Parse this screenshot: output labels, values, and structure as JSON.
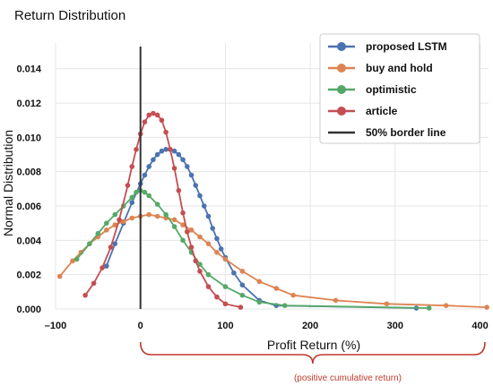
{
  "chart_data": {
    "type": "line",
    "title": "Return Distribution",
    "xlabel": "Profit Return (%)",
    "ylabel": "Normal Distribution",
    "xlim": [
      -100,
      410
    ],
    "ylim": [
      0,
      0.0155
    ],
    "xticks": [
      -100,
      0,
      100,
      200,
      300,
      400
    ],
    "xtick_labels": [
      "–100",
      "0",
      "100",
      "200",
      "300",
      "400"
    ],
    "yticks": [
      0,
      0.002,
      0.004,
      0.006,
      0.008,
      0.01,
      0.012,
      0.014
    ],
    "ytick_labels": [
      "0.000",
      "0.002",
      "0.004",
      "0.006",
      "0.008",
      "0.010",
      "0.012",
      "0.014"
    ],
    "grid": true,
    "legend_position": "top-right",
    "border_line_x": 0,
    "annotation": "(positive cumulative return)",
    "series": [
      {
        "name": "proposed LSTM",
        "color": "#4c72b0",
        "points": [
          [
            -40,
            0.0025
          ],
          [
            -30,
            0.0038
          ],
          [
            -20,
            0.005
          ],
          [
            -10,
            0.0062
          ],
          [
            0,
            0.0073
          ],
          [
            5,
            0.0078
          ],
          [
            10,
            0.0083
          ],
          [
            15,
            0.0087
          ],
          [
            20,
            0.009
          ],
          [
            25,
            0.0092
          ],
          [
            30,
            0.0093
          ],
          [
            35,
            0.0093
          ],
          [
            40,
            0.0092
          ],
          [
            45,
            0.009
          ],
          [
            50,
            0.0087
          ],
          [
            55,
            0.0083
          ],
          [
            60,
            0.0078
          ],
          [
            65,
            0.0072
          ],
          [
            70,
            0.0066
          ],
          [
            75,
            0.006
          ],
          [
            80,
            0.0054
          ],
          [
            85,
            0.0047
          ],
          [
            90,
            0.0041
          ],
          [
            95,
            0.0035
          ],
          [
            100,
            0.003
          ],
          [
            110,
            0.0021
          ],
          [
            120,
            0.0014
          ],
          [
            140,
            0.0005
          ],
          [
            160,
            0.0002
          ],
          [
            325,
            5e-05
          ]
        ]
      },
      {
        "name": "buy and hold",
        "color": "#dd8452",
        "points": [
          [
            -95,
            0.0019
          ],
          [
            -80,
            0.0028
          ],
          [
            -70,
            0.0033
          ],
          [
            -60,
            0.0038
          ],
          [
            -50,
            0.0042
          ],
          [
            -40,
            0.0046
          ],
          [
            -30,
            0.0049
          ],
          [
            -20,
            0.0051
          ],
          [
            -10,
            0.0053
          ],
          [
            0,
            0.0054
          ],
          [
            10,
            0.0055
          ],
          [
            20,
            0.0054
          ],
          [
            30,
            0.0053
          ],
          [
            40,
            0.0052
          ],
          [
            50,
            0.0049
          ],
          [
            60,
            0.0046
          ],
          [
            70,
            0.0042
          ],
          [
            80,
            0.0038
          ],
          [
            90,
            0.0033
          ],
          [
            100,
            0.0029
          ],
          [
            120,
            0.0022
          ],
          [
            140,
            0.0016
          ],
          [
            160,
            0.0012
          ],
          [
            180,
            0.0008
          ],
          [
            230,
            0.0005
          ],
          [
            290,
            0.0003
          ],
          [
            360,
            0.0002
          ],
          [
            408,
            0.0001
          ]
        ]
      },
      {
        "name": "optimistic",
        "color": "#55a868",
        "points": [
          [
            -75,
            0.0029
          ],
          [
            -60,
            0.0038
          ],
          [
            -50,
            0.0044
          ],
          [
            -40,
            0.005
          ],
          [
            -30,
            0.0055
          ],
          [
            -20,
            0.006
          ],
          [
            -10,
            0.0065
          ],
          [
            -5,
            0.0068
          ],
          [
            0,
            0.0069
          ],
          [
            5,
            0.0068
          ],
          [
            10,
            0.0066
          ],
          [
            20,
            0.0061
          ],
          [
            30,
            0.0055
          ],
          [
            40,
            0.0048
          ],
          [
            50,
            0.004
          ],
          [
            60,
            0.0033
          ],
          [
            70,
            0.0026
          ],
          [
            80,
            0.002
          ],
          [
            100,
            0.0013
          ],
          [
            120,
            0.0008
          ],
          [
            140,
            0.0004
          ],
          [
            170,
            0.0002
          ],
          [
            340,
            5e-05
          ]
        ]
      },
      {
        "name": "article",
        "color": "#c44e52",
        "points": [
          [
            -65,
            0.0008
          ],
          [
            -55,
            0.0015
          ],
          [
            -45,
            0.0024
          ],
          [
            -35,
            0.0036
          ],
          [
            -25,
            0.0052
          ],
          [
            -15,
            0.0072
          ],
          [
            -10,
            0.0083
          ],
          [
            -5,
            0.0093
          ],
          [
            0,
            0.0102
          ],
          [
            5,
            0.0109
          ],
          [
            10,
            0.0113
          ],
          [
            15,
            0.0114
          ],
          [
            20,
            0.0113
          ],
          [
            25,
            0.011
          ],
          [
            30,
            0.0103
          ],
          [
            35,
            0.0093
          ],
          [
            40,
            0.0082
          ],
          [
            45,
            0.0069
          ],
          [
            50,
            0.0056
          ],
          [
            55,
            0.0045
          ],
          [
            60,
            0.0036
          ],
          [
            65,
            0.0028
          ],
          [
            70,
            0.0022
          ],
          [
            80,
            0.0013
          ],
          [
            90,
            0.0007
          ],
          [
            100,
            0.0003
          ],
          [
            118,
            0.0001
          ]
        ]
      }
    ],
    "legend_items": [
      "proposed LSTM",
      "buy and hold",
      "optimistic",
      "article",
      "50% border line"
    ]
  }
}
